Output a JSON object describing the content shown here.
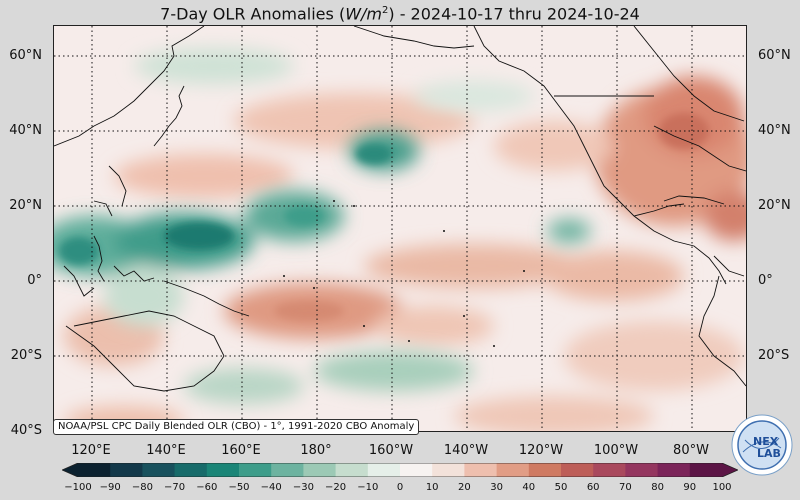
{
  "title": {
    "prefix": "7-Day OLR Anomalies (",
    "unit_main": "W/m",
    "unit_exp": "2",
    "suffix": ") - 2024-10-17 thru 2024-10-24"
  },
  "map": {
    "lat_labels": [
      "60°N",
      "40°N",
      "20°N",
      "0°",
      "20°S",
      "40°S"
    ],
    "lon_labels": [
      "120°E",
      "140°E",
      "160°E",
      "180°",
      "160°W",
      "140°W",
      "120°W",
      "100°W",
      "80°W"
    ],
    "credit": "NOAA/PSL CPC Daily Blended OLR (CBO) - 1°, 1991-2020 CBO Anomaly"
  },
  "colorbar": {
    "labels": [
      "−100",
      "−90",
      "−80",
      "−70",
      "−60",
      "−50",
      "−40",
      "−30",
      "−20",
      "−10",
      "0",
      "10",
      "20",
      "30",
      "40",
      "50",
      "60",
      "70",
      "80",
      "90",
      "100"
    ],
    "colors": [
      "#0c2230",
      "#13394a",
      "#18515d",
      "#176b6a",
      "#1a8577",
      "#3d9d8a",
      "#6db3a0",
      "#9cc9b5",
      "#c6ddce",
      "#e5efe9",
      "#f7f3f1",
      "#f3e2da",
      "#eebfae",
      "#e19d85",
      "#cf7a62",
      "#bd5e58",
      "#a9495d",
      "#94365f",
      "#7b2459",
      "#5c1546"
    ]
  },
  "logo": {
    "line1": "NEX",
    "line2": "LAB"
  }
}
